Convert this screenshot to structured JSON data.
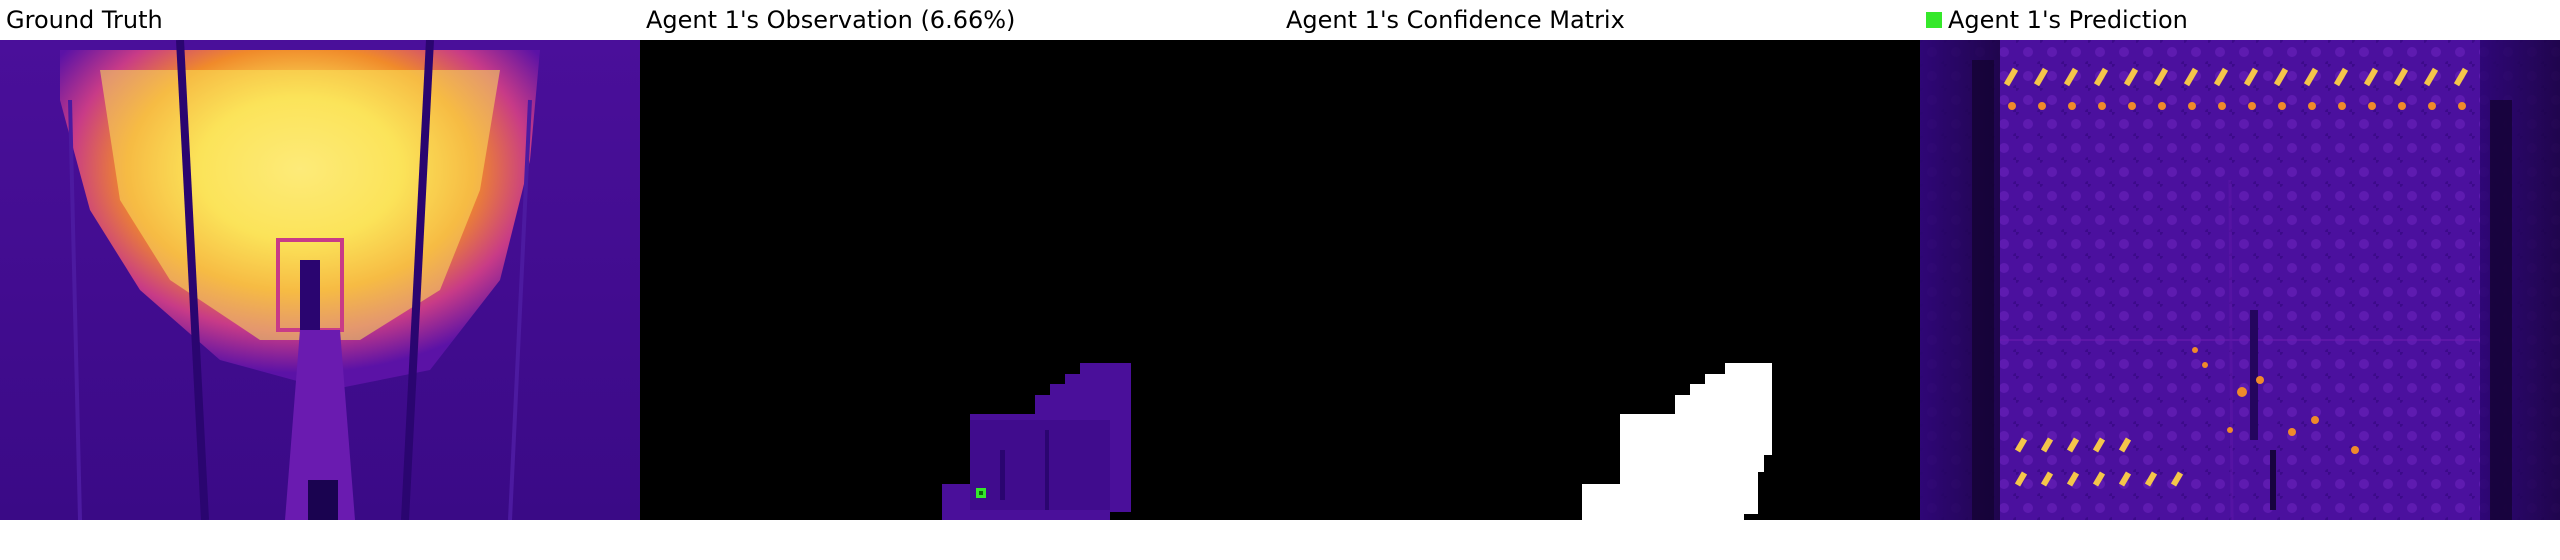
{
  "colors": {
    "background": "#ffffff",
    "plasma_dark": "#3a0a86",
    "plasma_mid": "#5b12a6",
    "plasma_magenta": "#c83b87",
    "plasma_orange": "#f08a2a",
    "plasma_yellow": "#fbe35a",
    "mask_black": "#000000",
    "mask_white": "#ffffff",
    "marker_green": "#35e82a"
  },
  "panels": [
    {
      "id": "ground-truth",
      "title": "Ground Truth"
    },
    {
      "id": "observation",
      "title": "Agent 1's Observation (6.66%)"
    },
    {
      "id": "confidence",
      "title": "Agent 1's Confidence Matrix"
    },
    {
      "id": "prediction",
      "title": "Agent 1's Prediction",
      "legend_icon": "green-square-icon"
    }
  ]
}
